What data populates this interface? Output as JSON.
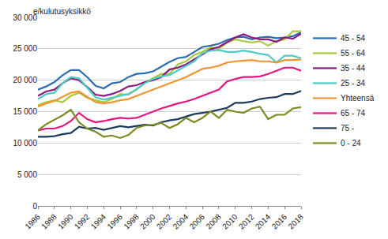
{
  "chart_data": {
    "type": "line",
    "y_label": "e/kulutusyksikkö",
    "x": [
      1986,
      1987,
      1988,
      1989,
      1990,
      1991,
      1992,
      1993,
      1994,
      1995,
      1996,
      1997,
      1998,
      1999,
      2000,
      2001,
      2002,
      2003,
      2004,
      2005,
      2006,
      2007,
      2008,
      2009,
      2010,
      2011,
      2012,
      2013,
      2014,
      2015,
      2016,
      2017,
      2018
    ],
    "xlim": [
      1986,
      2018
    ],
    "xticks": [
      1986,
      1988,
      1990,
      1992,
      1994,
      1996,
      1998,
      2000,
      2002,
      2004,
      2006,
      2008,
      2010,
      2012,
      2014,
      2016,
      2018
    ],
    "ylim": [
      0,
      30000
    ],
    "yticks": [
      0,
      {
        "value": 5000,
        "label": "5 000"
      },
      {
        "value": 10000,
        "label": "10 000"
      },
      {
        "value": 15000,
        "label": "15 000"
      },
      {
        "value": 20000,
        "label": "20 000"
      },
      {
        "value": 25000,
        "label": "25 000"
      },
      {
        "value": 30000,
        "label": "30 000"
      }
    ],
    "grid": true,
    "legend": "right",
    "series": [
      {
        "name": "45 - 54",
        "color": "#2b6cb3",
        "values": [
          18500,
          19000,
          19700,
          20800,
          21600,
          21600,
          20500,
          19100,
          18700,
          19500,
          19700,
          20500,
          21000,
          21100,
          21400,
          22200,
          22900,
          23500,
          23700,
          24500,
          25300,
          25500,
          25800,
          26400,
          26800,
          26900,
          26500,
          26800,
          26900,
          26700,
          26800,
          27000,
          27600
        ]
      },
      {
        "name": "55 - 64",
        "color": "#a8c93c",
        "values": [
          16000,
          16500,
          16800,
          16500,
          17500,
          18000,
          17200,
          16800,
          16500,
          17000,
          17800,
          17700,
          18500,
          19600,
          20300,
          21000,
          21000,
          22500,
          23000,
          24000,
          24500,
          25200,
          25000,
          26000,
          26500,
          26200,
          26000,
          26200,
          25500,
          26200,
          26500,
          27800,
          27800
        ]
      },
      {
        "name": "35 - 44",
        "color": "#8c1a80",
        "values": [
          17500,
          18200,
          18500,
          19500,
          20300,
          20000,
          18900,
          17700,
          17500,
          17800,
          18300,
          19000,
          19200,
          19700,
          20000,
          20500,
          21700,
          22000,
          22500,
          23300,
          24200,
          24900,
          25300,
          26000,
          26800,
          27300,
          26800,
          26500,
          26500,
          26100,
          26800,
          26600,
          27400
        ]
      },
      {
        "name": "25 - 34",
        "color": "#4dcbc4",
        "values": [
          17000,
          17800,
          18000,
          19500,
          20500,
          20300,
          18800,
          17300,
          16900,
          17200,
          17500,
          17800,
          18600,
          19500,
          20200,
          20600,
          20800,
          21500,
          22300,
          23000,
          24300,
          24700,
          24800,
          24500,
          24500,
          24700,
          24500,
          24200,
          24000,
          22800,
          23900,
          23900,
          23500
        ]
      },
      {
        "name": "Yhteensä",
        "color": "#f59331",
        "values": [
          15800,
          16300,
          16700,
          17300,
          18000,
          18200,
          17300,
          16500,
          16300,
          16500,
          16800,
          17000,
          17500,
          18000,
          18400,
          18900,
          19400,
          20000,
          20500,
          21100,
          21800,
          22000,
          22300,
          22800,
          23000,
          23100,
          23200,
          23000,
          23000,
          22800,
          23200,
          23200,
          23300
        ]
      },
      {
        "name": "65 - 74",
        "color": "#e6147f",
        "values": [
          12000,
          12300,
          12300,
          12700,
          13500,
          14800,
          13800,
          13300,
          13500,
          13800,
          14000,
          13900,
          14000,
          14500,
          15000,
          15500,
          15900,
          16300,
          16600,
          17000,
          17500,
          18000,
          18500,
          19800,
          20200,
          20500,
          20500,
          20600,
          21000,
          21500,
          22000,
          22000,
          21500
        ]
      },
      {
        "name": "75 -",
        "color": "#1b3a5c",
        "values": [
          11000,
          11000,
          11100,
          11400,
          11600,
          12600,
          12300,
          12400,
          12100,
          12400,
          12700,
          12500,
          12700,
          12900,
          12800,
          13300,
          13600,
          13800,
          14200,
          14600,
          14800,
          15000,
          15300,
          15600,
          16400,
          16400,
          16600,
          17000,
          17200,
          17300,
          17800,
          17800,
          18300
        ]
      },
      {
        "name": "0 - 24",
        "color": "#7a8b21",
        "values": [
          12000,
          13000,
          13700,
          14400,
          15300,
          13300,
          12300,
          11800,
          11000,
          11200,
          10800,
          11300,
          12400,
          12800,
          12900,
          13200,
          12400,
          13000,
          14000,
          13300,
          14000,
          15000,
          14000,
          15300,
          15000,
          14800,
          15500,
          15800,
          13800,
          14500,
          14500,
          15500,
          15700
        ]
      }
    ]
  }
}
